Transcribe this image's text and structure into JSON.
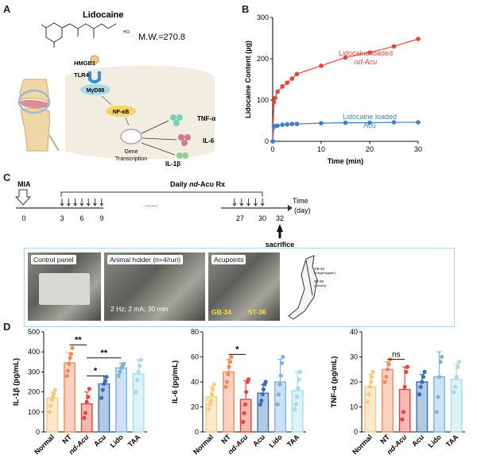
{
  "panels": [
    "A",
    "B",
    "C",
    "D"
  ],
  "panel_a": {
    "drug_name": "Lidocaine",
    "salt": "HCl",
    "mw": "M.W.=270.8",
    "nodes": [
      "HMGB1",
      "TLR4",
      "MyD88",
      "NF-κB",
      "Gene\nTranscription"
    ],
    "cytokines": [
      "TNF-α",
      "IL-6",
      "IL-1β"
    ],
    "colors": {
      "cell": "#f1ede1",
      "myd88": "#a9d8e6",
      "nfkb": "#f4d36a",
      "tlr4": "#3a8fd0"
    }
  },
  "panel_c": {
    "mia": "MIA",
    "rx": [
      "Daily ",
      "nd",
      "-Acu Rx"
    ],
    "ticks_left": [
      "0",
      "3",
      "6",
      "9"
    ],
    "ellipsis": "......",
    "ticks_right": [
      "27",
      "30",
      "32"
    ],
    "time_label": [
      "Time",
      "(day)"
    ],
    "sacrifice": "sacrifice",
    "photos": [
      {
        "label": "Control panel"
      },
      {
        "label": "Animal holder (n=4/run)",
        "caption": "2 Hz; 2 mA; 30 min"
      },
      {
        "label": "Acupoints",
        "points": [
          "GB-34",
          "ST-36"
        ]
      }
    ],
    "schematic_labels": [
      "GB-34",
      "(Yanglingquan)",
      "ST-36",
      "(Zusanli)"
    ]
  },
  "chart_data": [
    {
      "panel": "B",
      "type": "line",
      "xlabel": "Time (min)",
      "ylabel": "Lidocaine Content (µg)",
      "xlim": [
        0,
        30
      ],
      "ylim": [
        0,
        300
      ],
      "xticks": [
        0,
        10,
        20,
        30
      ],
      "yticks": [
        0,
        100,
        200,
        300
      ],
      "series": [
        {
          "name": [
            "Lidocaine loaded",
            "nd-Acu"
          ],
          "color": "#e8443a",
          "x": [
            0,
            0.25,
            0.5,
            1,
            2,
            3,
            4,
            5,
            10,
            15,
            20,
            25,
            30
          ],
          "y": [
            0,
            95,
            105,
            120,
            133,
            142,
            152,
            163,
            183,
            203,
            215,
            230,
            248
          ]
        },
        {
          "name": [
            "Lidocaine loaded",
            "Acu"
          ],
          "color": "#3f7fca",
          "x": [
            0,
            0.25,
            0.5,
            1,
            2,
            3,
            4,
            5,
            10,
            15,
            20,
            25,
            30
          ],
          "y": [
            0,
            35,
            37,
            38,
            40,
            41,
            42,
            42,
            44,
            45,
            45,
            46,
            46
          ]
        }
      ]
    },
    {
      "panel": "D1",
      "type": "bar",
      "ylabel": "IL-1β (pg/mL)",
      "ylim": [
        0,
        500
      ],
      "yticks": [
        0,
        100,
        200,
        300,
        400,
        500
      ],
      "categories": [
        "Normal",
        "NT",
        "nd-Acu",
        "Acu",
        "Lido",
        "TAA"
      ],
      "values": [
        170,
        345,
        140,
        240,
        320,
        290
      ],
      "errors": [
        30,
        50,
        60,
        40,
        25,
        70
      ],
      "points": [
        [
          100,
          130,
          160,
          175,
          190,
          210
        ],
        [
          280,
          305,
          340,
          370,
          390,
          420
        ],
        [
          70,
          95,
          150,
          175,
          215
        ],
        [
          170,
          210,
          240,
          255,
          275
        ],
        [
          280,
          300,
          320,
          330,
          340
        ],
        [
          200,
          260,
          300,
          330,
          360
        ]
      ],
      "colors": [
        "#f9c97a",
        "#f48a5c",
        "#e8443a",
        "#3a6fb8",
        "#7eb2e4",
        "#a3dce5"
      ],
      "significance": [
        {
          "from": 1,
          "to": 2,
          "label": "**",
          "y": 435
        },
        {
          "from": 2,
          "to": 3,
          "label": "*",
          "y": 280
        },
        {
          "from": 2,
          "to": 4,
          "label": "**",
          "y": 370
        }
      ]
    },
    {
      "panel": "D2",
      "type": "bar",
      "ylabel": "IL-6 (pg/mL)",
      "ylim": [
        0,
        80
      ],
      "yticks": [
        0,
        20,
        40,
        60,
        80
      ],
      "categories": [
        "Normal",
        "NT",
        "nd-Acu",
        "Acu",
        "Lido",
        "TAA"
      ],
      "values": [
        28,
        48,
        26,
        31,
        40,
        33
      ],
      "errors": [
        8,
        10,
        15,
        7,
        18,
        15
      ],
      "points": [
        [
          18,
          22,
          25,
          30,
          34,
          38
        ],
        [
          36,
          40,
          46,
          52,
          56,
          60
        ],
        [
          8,
          15,
          22,
          32,
          40,
          42
        ],
        [
          22,
          25,
          30,
          34,
          38,
          40
        ],
        [
          22,
          30,
          38,
          45,
          55,
          60
        ],
        [
          18,
          22,
          28,
          35,
          42,
          48
        ]
      ],
      "colors": [
        "#f9c97a",
        "#f48a5c",
        "#e8443a",
        "#3a6fb8",
        "#7eb2e4",
        "#a3dce5"
      ],
      "significance": [
        {
          "from": 1,
          "to": 2,
          "label": "*",
          "y": 62
        }
      ]
    },
    {
      "panel": "D3",
      "type": "bar",
      "ylabel": "TNF-α (pg/mL)",
      "ylim": [
        0,
        40
      ],
      "yticks": [
        0,
        10,
        20,
        30,
        40
      ],
      "categories": [
        "Normal",
        "NT",
        "nd-Acu",
        "Acu",
        "Lido",
        "TAA"
      ],
      "values": [
        18,
        25,
        17,
        20,
        22,
        21
      ],
      "errors": [
        5,
        3,
        9,
        3,
        10,
        6
      ],
      "points": [
        [
          12,
          15,
          18,
          20,
          22,
          24
        ],
        [
          20,
          22,
          25,
          27,
          29
        ],
        [
          5,
          8,
          18,
          24,
          26
        ],
        [
          15,
          18,
          20,
          22,
          24
        ],
        [
          8,
          14,
          22,
          28,
          30
        ],
        [
          16,
          18,
          22,
          26,
          28
        ]
      ],
      "colors": [
        "#f9c97a",
        "#f48a5c",
        "#e8443a",
        "#3a6fb8",
        "#7eb2e4",
        "#a3dce5"
      ],
      "significance": [
        {
          "from": 1,
          "to": 2,
          "label": "ns",
          "y": 29
        }
      ]
    }
  ]
}
